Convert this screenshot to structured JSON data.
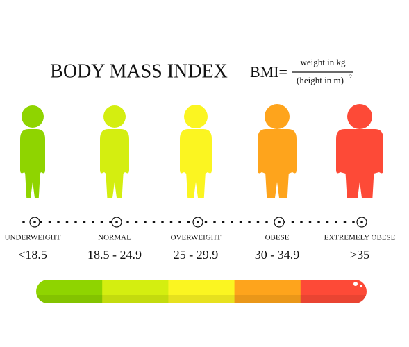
{
  "header": {
    "title": "BODY MASS INDEX"
  },
  "formula": {
    "lhs": "BMI=",
    "numerator": "weight in kg",
    "denominator": "(height in m)",
    "exponent": "2"
  },
  "categories": [
    {
      "label": "UNDERWEIGHT",
      "range": "<18.5",
      "color": "#8fd400"
    },
    {
      "label": "NORMAL",
      "range": "18.5 - 24.9",
      "color": "#d4ee10"
    },
    {
      "label": "OVERWEIGHT",
      "range": "25 - 29.9",
      "color": "#fbf521"
    },
    {
      "label": "OBESE",
      "range": "30 - 34.9",
      "color": "#fea41c"
    },
    {
      "label": "EXTREMELY OBESE",
      "range": ">35",
      "color": "#fd4a37"
    }
  ]
}
